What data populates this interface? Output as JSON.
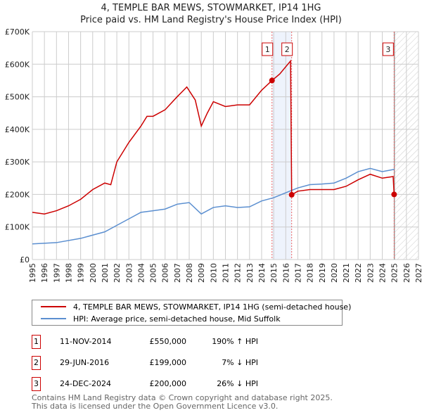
{
  "chart_data": {
    "type": "line",
    "title": "4, TEMPLE BAR MEWS, STOWMARKET, IP14 1HG",
    "subtitle": "Price paid vs. HM Land Registry's House Price Index (HPI)",
    "xlim": [
      1995,
      2027
    ],
    "ylim": [
      0,
      700000
    ],
    "x_ticks": [
      "1995",
      "1996",
      "1997",
      "1998",
      "1999",
      "2000",
      "2001",
      "2002",
      "2003",
      "2004",
      "2005",
      "2006",
      "2007",
      "2008",
      "2009",
      "2010",
      "2011",
      "2012",
      "2013",
      "2014",
      "2015",
      "2016",
      "2017",
      "2018",
      "2019",
      "2020",
      "2021",
      "2022",
      "2023",
      "2024",
      "2025",
      "2026",
      "2027"
    ],
    "y_ticks": [
      {
        "v": 0,
        "label": "£0"
      },
      {
        "v": 100000,
        "label": "£100K"
      },
      {
        "v": 200000,
        "label": "£200K"
      },
      {
        "v": 300000,
        "label": "£300K"
      },
      {
        "v": 400000,
        "label": "£400K"
      },
      {
        "v": 500000,
        "label": "£500K"
      },
      {
        "v": 600000,
        "label": "£600K"
      },
      {
        "v": 700000,
        "label": "£700K"
      }
    ],
    "grid": true,
    "series": [
      {
        "name": "4, TEMPLE BAR MEWS, STOWMARKET, IP14 1HG (semi-detached house)",
        "color": "#cc0000",
        "points": [
          [
            1995,
            145000
          ],
          [
            1996,
            140000
          ],
          [
            1997,
            150000
          ],
          [
            1998,
            165000
          ],
          [
            1999,
            185000
          ],
          [
            2000,
            215000
          ],
          [
            2001,
            235000
          ],
          [
            2001.5,
            230000
          ],
          [
            2002,
            300000
          ],
          [
            2003,
            360000
          ],
          [
            2004,
            410000
          ],
          [
            2004.5,
            440000
          ],
          [
            2005,
            440000
          ],
          [
            2006,
            460000
          ],
          [
            2007,
            500000
          ],
          [
            2007.8,
            530000
          ],
          [
            2008.5,
            490000
          ],
          [
            2009,
            410000
          ],
          [
            2009.5,
            450000
          ],
          [
            2010,
            485000
          ],
          [
            2011,
            470000
          ],
          [
            2012,
            475000
          ],
          [
            2013,
            475000
          ],
          [
            2014,
            520000
          ],
          [
            2014.86,
            550000
          ],
          [
            2015.5,
            570000
          ],
          [
            2016.4,
            610000
          ],
          [
            2016.49,
            199000
          ],
          [
            2017,
            210000
          ],
          [
            2018,
            215000
          ],
          [
            2019,
            215000
          ],
          [
            2020,
            215000
          ],
          [
            2021,
            225000
          ],
          [
            2022,
            245000
          ],
          [
            2023,
            262000
          ],
          [
            2024,
            250000
          ],
          [
            2024.9,
            255000
          ],
          [
            2024.98,
            200000
          ]
        ]
      },
      {
        "name": "HPI: Average price, semi-detached house, Mid Suffolk",
        "color": "#5b8fd0",
        "points": [
          [
            1995,
            48000
          ],
          [
            1997,
            52000
          ],
          [
            1999,
            65000
          ],
          [
            2000,
            75000
          ],
          [
            2001,
            85000
          ],
          [
            2002,
            105000
          ],
          [
            2003,
            125000
          ],
          [
            2004,
            145000
          ],
          [
            2005,
            150000
          ],
          [
            2006,
            155000
          ],
          [
            2007,
            170000
          ],
          [
            2008,
            175000
          ],
          [
            2009,
            140000
          ],
          [
            2010,
            160000
          ],
          [
            2011,
            165000
          ],
          [
            2012,
            160000
          ],
          [
            2013,
            162000
          ],
          [
            2014,
            180000
          ],
          [
            2015,
            190000
          ],
          [
            2016,
            205000
          ],
          [
            2017,
            220000
          ],
          [
            2018,
            230000
          ],
          [
            2019,
            232000
          ],
          [
            2020,
            235000
          ],
          [
            2021,
            250000
          ],
          [
            2022,
            270000
          ],
          [
            2023,
            280000
          ],
          [
            2024,
            270000
          ],
          [
            2025,
            277000
          ]
        ]
      }
    ],
    "sales": [
      {
        "n": "1",
        "x": 2014.86,
        "y": 550000,
        "date": "11-NOV-2014",
        "price": "£550,000",
        "hpi": "190% ↑ HPI"
      },
      {
        "n": "2",
        "x": 2016.49,
        "y": 199000,
        "date": "29-JUN-2016",
        "price": "£199,000",
        "hpi": "7% ↓ HPI"
      },
      {
        "n": "3",
        "x": 2024.98,
        "y": 200000,
        "date": "24-DEC-2024",
        "price": "£200,000",
        "hpi": "26% ↓ HPI"
      }
    ],
    "forecast_from": 2025
  },
  "footer": [
    "Contains HM Land Registry data © Crown copyright and database right 2025.",
    "This data is licensed under the Open Government Licence v3.0."
  ]
}
